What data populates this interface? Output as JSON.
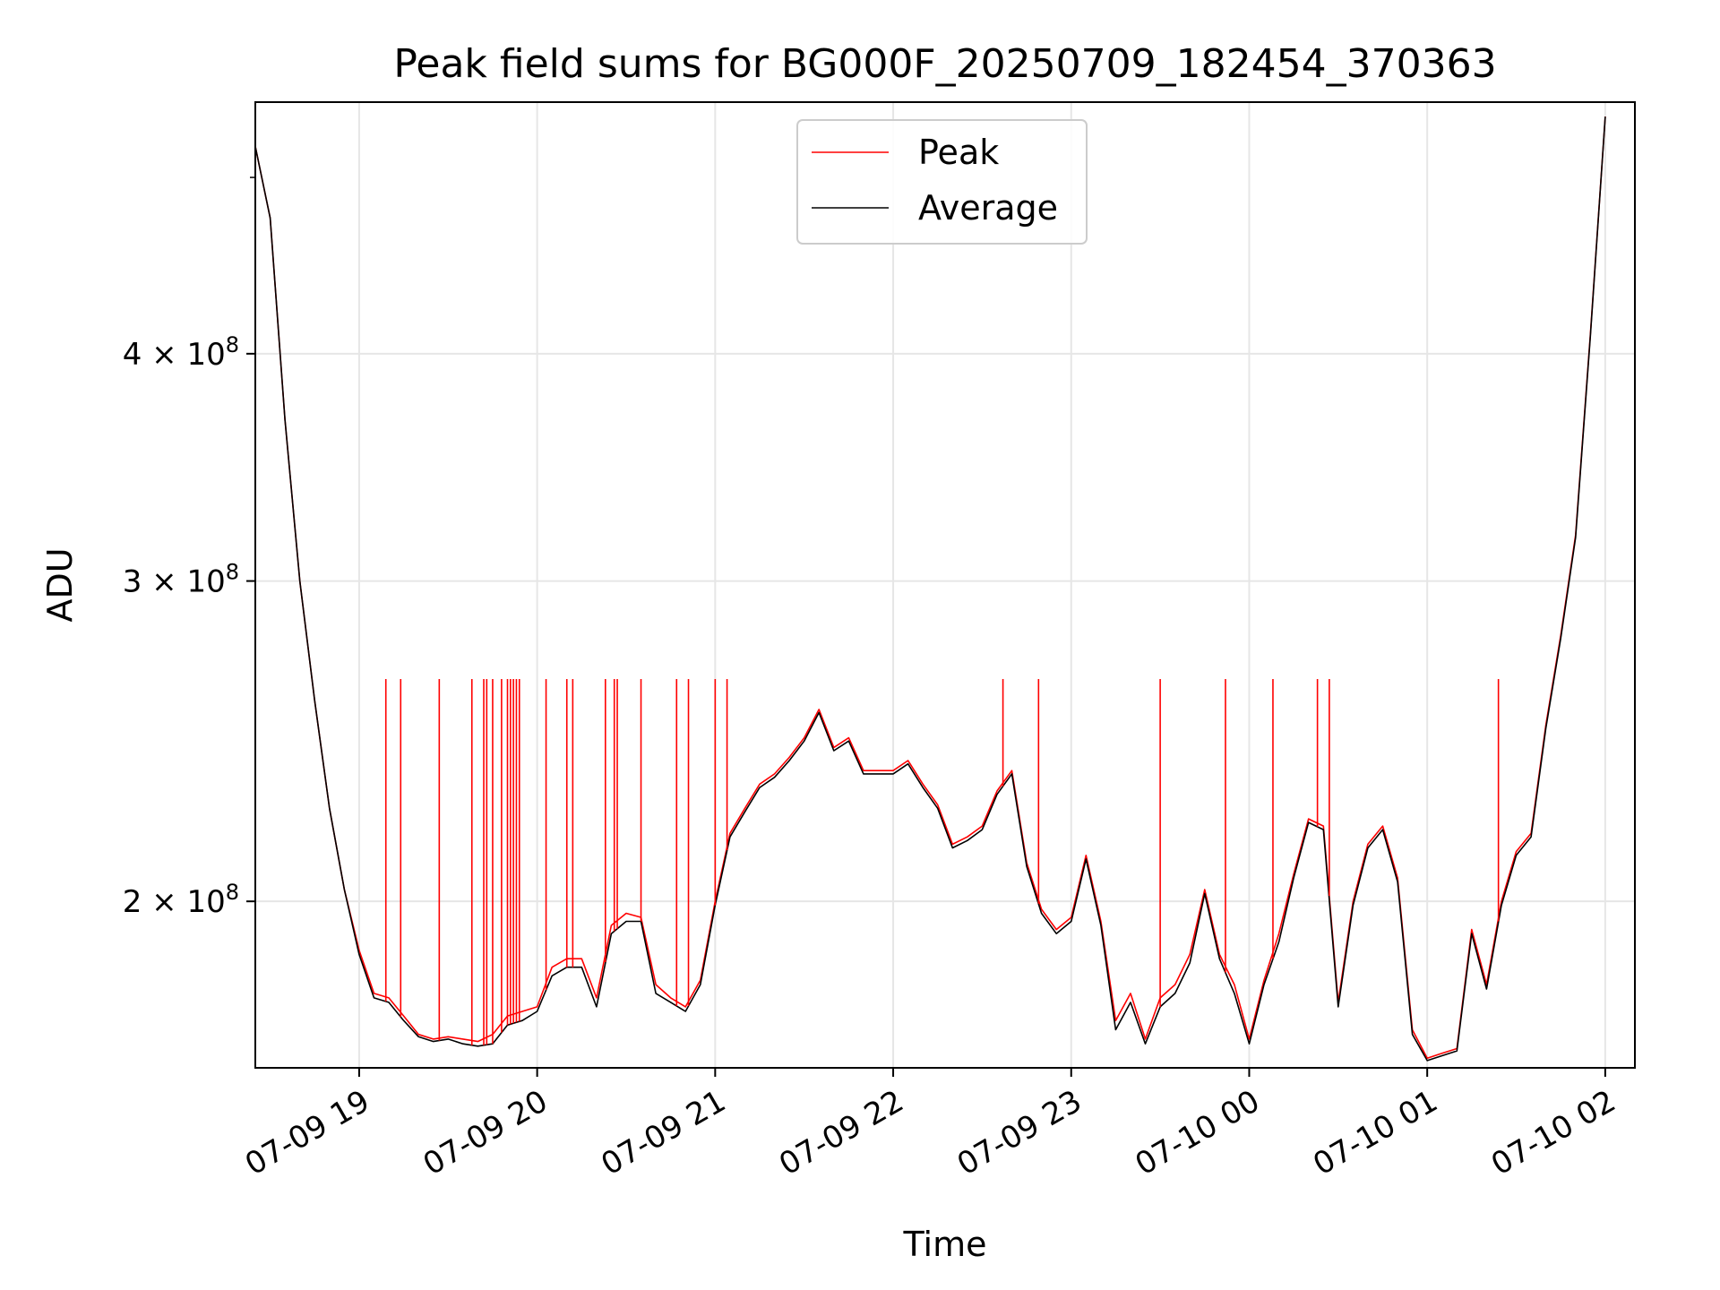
{
  "chart_data": {
    "type": "line",
    "title": "Peak field sums for BG000F_20250709_182454_370363",
    "xlabel": "Time",
    "ylabel": "ADU",
    "y_scale": "log",
    "ylim": [
      162000000,
      550000000
    ],
    "xlim": [
      "07-09 18:25",
      "07-10 02:10"
    ],
    "x_ticks": [
      "07-09 19",
      "07-09 20",
      "07-09 21",
      "07-09 22",
      "07-09 23",
      "07-10 00",
      "07-10 01",
      "07-10 02"
    ],
    "y_ticks": [
      {
        "value": 200000000,
        "mantissa": "2",
        "exponent": "8"
      },
      {
        "value": 300000000,
        "mantissa": "3",
        "exponent": "8"
      },
      {
        "value": 400000000,
        "mantissa": "4",
        "exponent": "8"
      }
    ],
    "grid": true,
    "legend_position": "upper center",
    "series": [
      {
        "name": "Peak",
        "color": "#ff0000",
        "x": [
          "07-09 18:25",
          "07-09 18:30",
          "07-09 18:35",
          "07-09 18:40",
          "07-09 18:45",
          "07-09 18:50",
          "07-09 18:55",
          "07-09 19:00",
          "07-09 19:05",
          "07-09 19:10",
          "07-09 19:15",
          "07-09 19:20",
          "07-09 19:25",
          "07-09 19:30",
          "07-09 19:35",
          "07-09 19:40",
          "07-09 19:45",
          "07-09 19:50",
          "07-09 19:55",
          "07-09 20:00",
          "07-09 20:05",
          "07-09 20:10",
          "07-09 20:15",
          "07-09 20:20",
          "07-09 20:25",
          "07-09 20:30",
          "07-09 20:35",
          "07-09 20:40",
          "07-09 20:45",
          "07-09 20:50",
          "07-09 20:55",
          "07-09 21:00",
          "07-09 21:05",
          "07-09 21:10",
          "07-09 21:15",
          "07-09 21:20",
          "07-09 21:25",
          "07-09 21:30",
          "07-09 21:35",
          "07-09 21:40",
          "07-09 21:45",
          "07-09 21:50",
          "07-09 21:55",
          "07-09 22:00",
          "07-09 22:05",
          "07-09 22:10",
          "07-09 22:15",
          "07-09 22:20",
          "07-09 22:25",
          "07-09 22:30",
          "07-09 22:35",
          "07-09 22:40",
          "07-09 22:45",
          "07-09 22:50",
          "07-09 22:55",
          "07-09 23:00",
          "07-09 23:05",
          "07-09 23:10",
          "07-09 23:15",
          "07-09 23:20",
          "07-09 23:25",
          "07-09 23:30",
          "07-09 23:35",
          "07-09 23:40",
          "07-09 23:45",
          "07-09 23:50",
          "07-09 23:55",
          "07-10 00:00",
          "07-10 00:05",
          "07-10 00:10",
          "07-10 00:15",
          "07-10 00:20",
          "07-10 00:25",
          "07-10 00:30",
          "07-10 00:35",
          "07-10 00:40",
          "07-10 00:45",
          "07-10 00:50",
          "07-10 00:55",
          "07-10 01:00",
          "07-10 01:05",
          "07-10 01:10",
          "07-10 01:15",
          "07-10 01:20",
          "07-10 01:25",
          "07-10 01:30",
          "07-10 01:35",
          "07-10 01:40",
          "07-10 01:45",
          "07-10 01:50",
          "07-10 01:55",
          "07-10 02:00"
        ],
        "y": [
          520000000,
          475000000,
          368000000,
          300000000,
          258000000,
          225000000,
          203000000,
          188000000,
          178000000,
          177000000,
          173000000,
          169000000,
          168000000,
          168500000,
          168000000,
          167500000,
          169000000,
          173000000,
          174000000,
          175000000,
          184000000,
          186000000,
          186000000,
          177000000,
          194000000,
          197000000,
          196000000,
          180000000,
          177000000,
          175000000,
          181000000,
          200000000,
          218000000,
          225000000,
          232000000,
          235000000,
          240000000,
          246000000,
          255000000,
          243000000,
          246000000,
          236000000,
          236000000,
          236000000,
          239000000,
          232000000,
          226000000,
          215000000,
          217000000,
          220000000,
          230000000,
          236000000,
          210000000,
          198000000,
          193000000,
          196000000,
          212000000,
          195000000,
          172000000,
          178000000,
          168000000,
          177000000,
          180000000,
          187000000,
          203000000,
          187000000,
          180000000,
          168000000,
          181000000,
          192000000,
          207000000,
          222000000,
          220000000,
          176000000,
          200000000,
          215000000,
          220000000,
          206000000,
          170000000,
          164000000,
          165000000,
          166000000,
          193000000,
          180000000,
          200000000,
          213000000,
          218000000,
          250000000,
          280000000,
          318000000,
          410000000,
          540000000
        ]
      },
      {
        "name": "Average",
        "color": "#000000",
        "x": [
          "07-09 18:25",
          "07-09 18:30",
          "07-09 18:35",
          "07-09 18:40",
          "07-09 18:45",
          "07-09 18:50",
          "07-09 18:55",
          "07-09 19:00",
          "07-09 19:05",
          "07-09 19:10",
          "07-09 19:15",
          "07-09 19:20",
          "07-09 19:25",
          "07-09 19:30",
          "07-09 19:35",
          "07-09 19:40",
          "07-09 19:45",
          "07-09 19:50",
          "07-09 19:55",
          "07-09 20:00",
          "07-09 20:05",
          "07-09 20:10",
          "07-09 20:15",
          "07-09 20:20",
          "07-09 20:25",
          "07-09 20:30",
          "07-09 20:35",
          "07-09 20:40",
          "07-09 20:45",
          "07-09 20:50",
          "07-09 20:55",
          "07-09 21:00",
          "07-09 21:05",
          "07-09 21:10",
          "07-09 21:15",
          "07-09 21:20",
          "07-09 21:25",
          "07-09 21:30",
          "07-09 21:35",
          "07-09 21:40",
          "07-09 21:45",
          "07-09 21:50",
          "07-09 21:55",
          "07-09 22:00",
          "07-09 22:05",
          "07-09 22:10",
          "07-09 22:15",
          "07-09 22:20",
          "07-09 22:25",
          "07-09 22:30",
          "07-09 22:35",
          "07-09 22:40",
          "07-09 22:45",
          "07-09 22:50",
          "07-09 22:55",
          "07-09 23:00",
          "07-09 23:05",
          "07-09 23:10",
          "07-09 23:15",
          "07-09 23:20",
          "07-09 23:25",
          "07-09 23:30",
          "07-09 23:35",
          "07-09 23:40",
          "07-09 23:45",
          "07-09 23:50",
          "07-09 23:55",
          "07-10 00:00",
          "07-10 00:05",
          "07-10 00:10",
          "07-10 00:15",
          "07-10 00:20",
          "07-10 00:25",
          "07-10 00:30",
          "07-10 00:35",
          "07-10 00:40",
          "07-10 00:45",
          "07-10 00:50",
          "07-10 00:55",
          "07-10 01:00",
          "07-10 01:05",
          "07-10 01:10",
          "07-10 01:15",
          "07-10 01:20",
          "07-10 01:25",
          "07-10 01:30",
          "07-10 01:35",
          "07-10 01:40",
          "07-10 01:45",
          "07-10 01:50",
          "07-10 01:55",
          "07-10 02:00"
        ],
        "y": [
          520000000,
          475000000,
          368000000,
          300000000,
          258000000,
          225000000,
          203000000,
          187000000,
          177000000,
          176000000,
          172000000,
          168500000,
          167500000,
          168000000,
          167000000,
          166500000,
          167000000,
          171000000,
          172000000,
          174000000,
          182000000,
          184000000,
          184000000,
          175000000,
          192000000,
          195000000,
          195000000,
          178000000,
          176000000,
          174000000,
          180000000,
          199000000,
          217000000,
          224000000,
          231000000,
          234000000,
          239000000,
          245000000,
          254000000,
          242000000,
          245000000,
          235000000,
          235000000,
          235000000,
          238000000,
          231000000,
          225000000,
          214000000,
          216000000,
          219000000,
          229000000,
          235000000,
          209000000,
          197000000,
          192000000,
          195000000,
          211000000,
          194000000,
          170000000,
          176000000,
          167000000,
          175000000,
          178000000,
          185000000,
          202000000,
          186000000,
          178000000,
          167000000,
          180000000,
          190000000,
          206000000,
          221000000,
          219000000,
          175000000,
          199000000,
          214000000,
          219000000,
          205000000,
          169000000,
          163500000,
          164500000,
          165500000,
          192000000,
          179000000,
          199000000,
          212000000,
          217000000,
          249000000,
          279000000,
          317000000,
          409000000,
          540000000
        ]
      }
    ],
    "peak_spikes": {
      "value": 265000000,
      "x": [
        "07-09 19:09",
        "07-09 19:14",
        "07-09 19:27",
        "07-09 19:38",
        "07-09 19:42",
        "07-09 19:43",
        "07-09 19:45",
        "07-09 19:48",
        "07-09 19:50",
        "07-09 19:51",
        "07-09 19:52",
        "07-09 19:53",
        "07-09 19:54",
        "07-09 20:03",
        "07-09 20:10",
        "07-09 20:12",
        "07-09 20:23",
        "07-09 20:26",
        "07-09 20:27",
        "07-09 20:35",
        "07-09 20:47",
        "07-09 20:51",
        "07-09 21:00",
        "07-09 21:04",
        "07-09 22:37",
        "07-09 22:49",
        "07-09 23:30",
        "07-09 23:52",
        "07-10 00:08",
        "07-10 00:23",
        "07-10 00:27",
        "07-10 01:24"
      ]
    }
  }
}
